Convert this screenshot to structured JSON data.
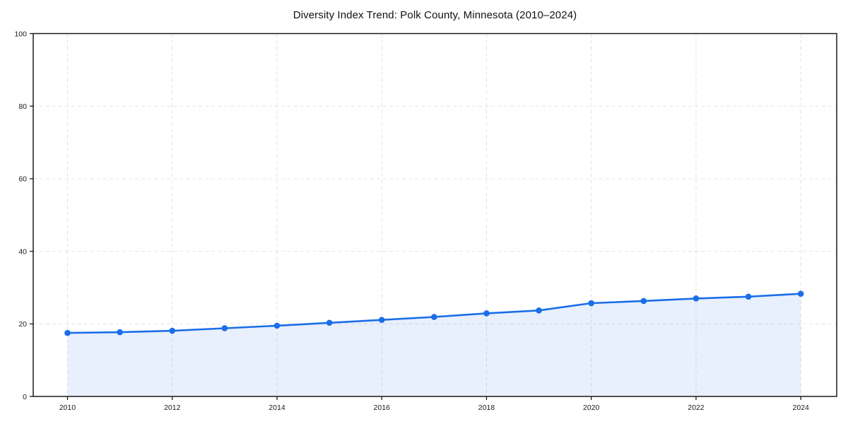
{
  "chart_data": {
    "type": "line",
    "title": "Diversity Index Trend: Polk County, Minnesota (2010–2024)",
    "x": [
      2010,
      2011,
      2012,
      2013,
      2014,
      2015,
      2016,
      2017,
      2018,
      2019,
      2020,
      2021,
      2022,
      2023,
      2024
    ],
    "values": [
      17.5,
      17.7,
      18.1,
      18.8,
      19.5,
      20.3,
      21.1,
      21.9,
      22.9,
      23.7,
      25.7,
      26.3,
      27.0,
      27.5,
      28.3
    ],
    "series_name": "Diversity Index",
    "xticks": [
      2010,
      2012,
      2014,
      2016,
      2018,
      2020,
      2022,
      2024
    ],
    "yticks": [
      0,
      20,
      40,
      60,
      80,
      100
    ],
    "ylim": [
      0,
      100
    ],
    "xlabel": "",
    "ylabel": "",
    "legend": "none",
    "grid": "dashed-both",
    "marker": "circle",
    "area_fill": true,
    "line_color": "#1a6ee8",
    "fill_color": "#1a6ee8",
    "fill_opacity": 0.1,
    "spine_color": "#1a1a1a",
    "grid_color": "#d9d9d9",
    "background_color": "#ffffff"
  }
}
